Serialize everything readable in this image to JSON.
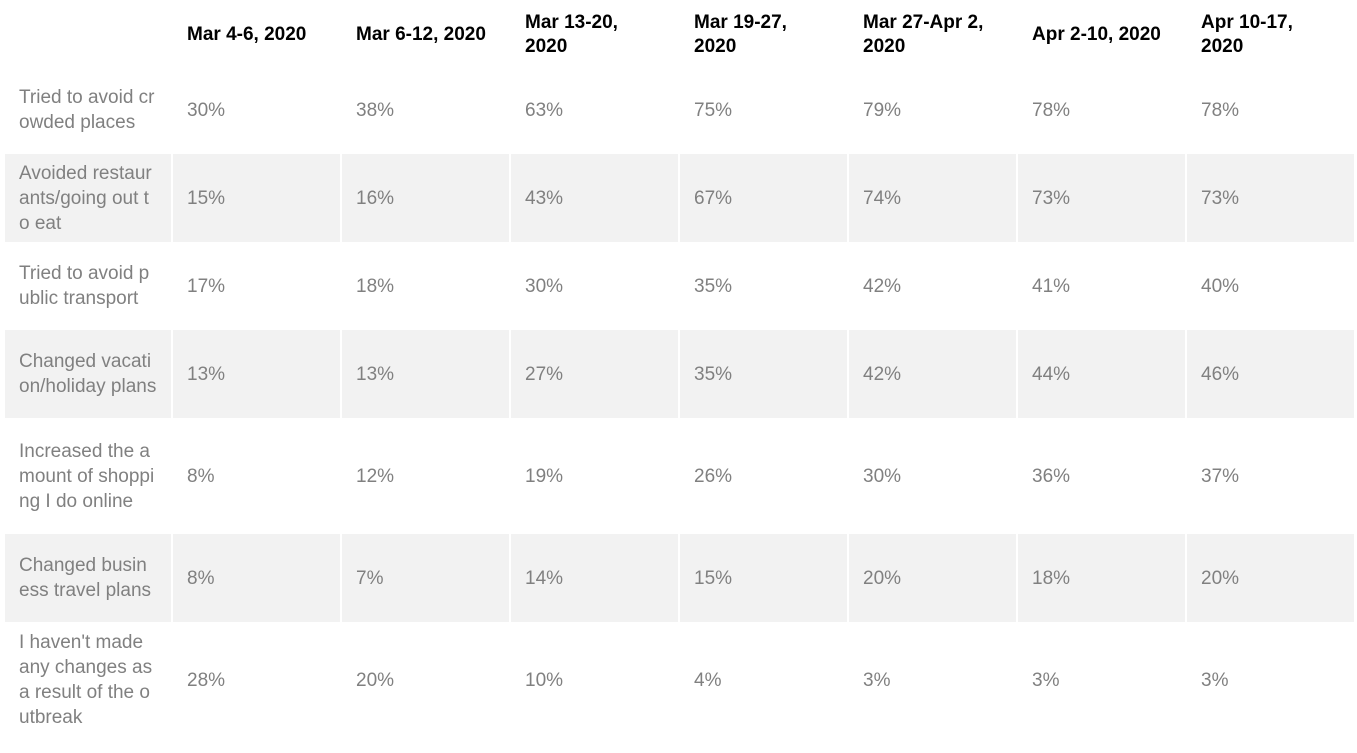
{
  "chart_data": {
    "type": "table",
    "columns": [
      "",
      "Mar 4-6, 2020",
      "Mar 6-12, 2020",
      "Mar 13-20, 2020",
      "Mar 19-27, 2020",
      "Mar 27-Apr 2, 2020",
      "Apr 2-10, 2020",
      "Apr 10-17, 2020"
    ],
    "rows": [
      {
        "label": "Tried to avoid crowded places",
        "values": [
          "30%",
          "38%",
          "63%",
          "75%",
          "79%",
          "78%",
          "78%"
        ]
      },
      {
        "label": "Avoided restaurants/going out to eat",
        "values": [
          "15%",
          "16%",
          "43%",
          "67%",
          "74%",
          "73%",
          "73%"
        ]
      },
      {
        "label": "Tried to avoid public transport",
        "values": [
          "17%",
          "18%",
          "30%",
          "35%",
          "42%",
          "41%",
          "40%"
        ]
      },
      {
        "label": "Changed vacation/holiday plans",
        "values": [
          "13%",
          "13%",
          "27%",
          "35%",
          "42%",
          "44%",
          "46%"
        ]
      },
      {
        "label": "Increased the amount of shopping I do online",
        "values": [
          "8%",
          "12%",
          "19%",
          "26%",
          "30%",
          "36%",
          "37%"
        ]
      },
      {
        "label": "Changed business travel plans",
        "values": [
          "8%",
          "7%",
          "14%",
          "15%",
          "20%",
          "18%",
          "20%"
        ]
      },
      {
        "label": "I haven't made any changes as a result of the outbreak",
        "values": [
          "28%",
          "20%",
          "10%",
          "4%",
          "3%",
          "3%",
          "3%"
        ]
      }
    ],
    "colors": {
      "header_text": "#000000",
      "cell_text": "#808080",
      "band": "#f2f2f2"
    }
  }
}
